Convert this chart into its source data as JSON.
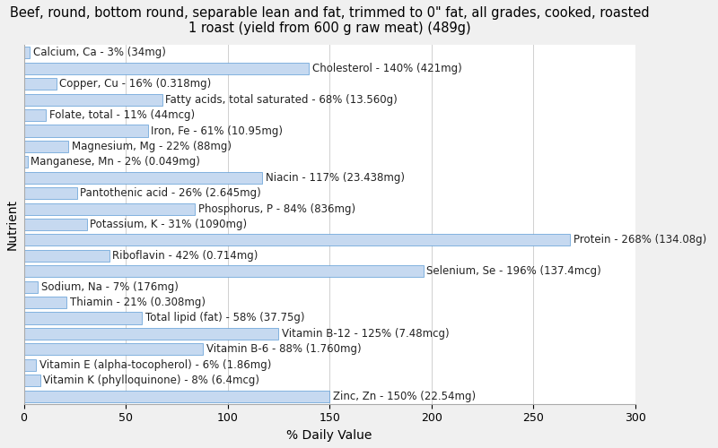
{
  "title": "Beef, round, bottom round, separable lean and fat, trimmed to 0\" fat, all grades, cooked, roasted\n1 roast (yield from 600 g raw meat) (489g)",
  "xlabel": "% Daily Value",
  "ylabel": "Nutrient",
  "nutrients": [
    "Calcium, Ca - 3% (34mg)",
    "Cholesterol - 140% (421mg)",
    "Copper, Cu - 16% (0.318mg)",
    "Fatty acids, total saturated - 68% (13.560g)",
    "Folate, total - 11% (44mcg)",
    "Iron, Fe - 61% (10.95mg)",
    "Magnesium, Mg - 22% (88mg)",
    "Manganese, Mn - 2% (0.049mg)",
    "Niacin - 117% (23.438mg)",
    "Pantothenic acid - 26% (2.645mg)",
    "Phosphorus, P - 84% (836mg)",
    "Potassium, K - 31% (1090mg)",
    "Protein - 268% (134.08g)",
    "Riboflavin - 42% (0.714mg)",
    "Selenium, Se - 196% (137.4mcg)",
    "Sodium, Na - 7% (176mg)",
    "Thiamin - 21% (0.308mg)",
    "Total lipid (fat) - 58% (37.75g)",
    "Vitamin B-12 - 125% (7.48mcg)",
    "Vitamin B-6 - 88% (1.760mg)",
    "Vitamin E (alpha-tocopherol) - 6% (1.86mg)",
    "Vitamin K (phylloquinone) - 8% (6.4mcg)",
    "Zinc, Zn - 150% (22.54mg)"
  ],
  "values": [
    3,
    140,
    16,
    68,
    11,
    61,
    22,
    2,
    117,
    26,
    84,
    31,
    268,
    42,
    196,
    7,
    21,
    58,
    125,
    88,
    6,
    8,
    150
  ],
  "bar_color": "#c6d9f0",
  "bar_edge_color": "#5b9bd5",
  "background_color": "#f0f0f0",
  "plot_background_color": "#ffffff",
  "xlim": [
    0,
    300
  ],
  "xticks": [
    0,
    50,
    100,
    150,
    200,
    250,
    300
  ],
  "title_fontsize": 10.5,
  "label_fontsize": 8.5,
  "axis_label_fontsize": 10,
  "tick_fontsize": 9
}
